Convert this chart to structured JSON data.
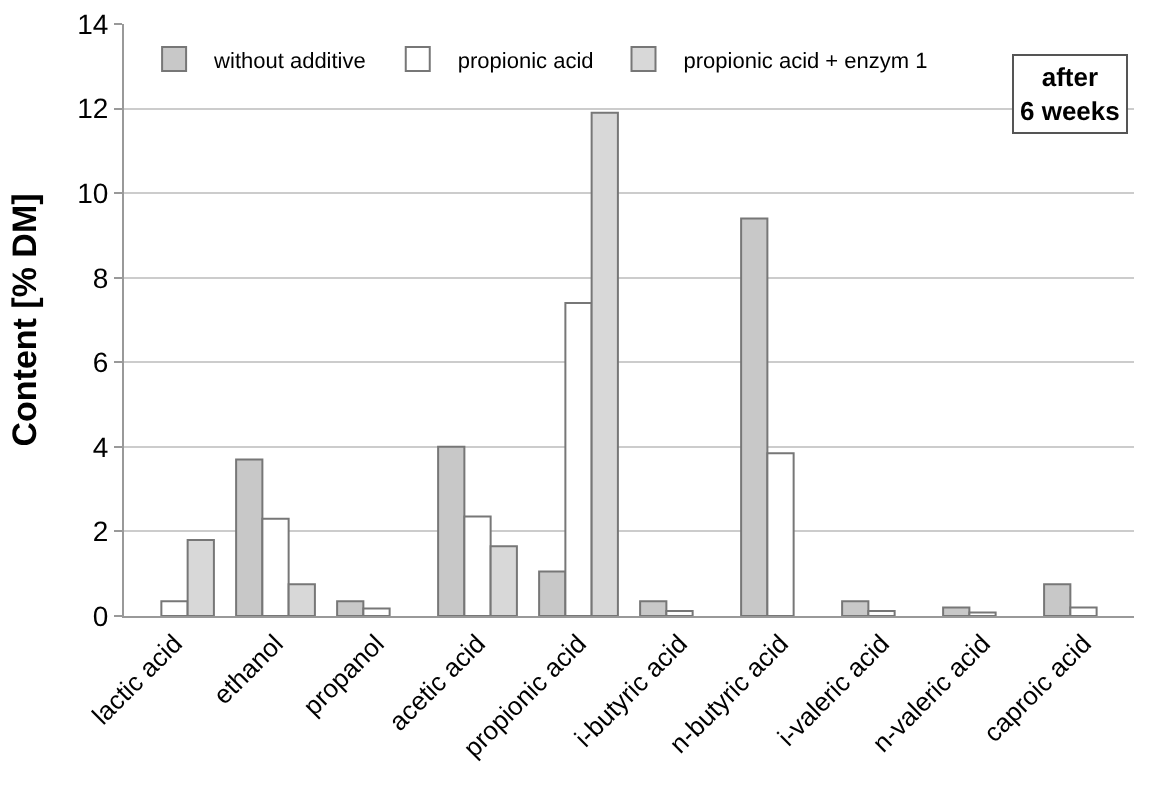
{
  "chart_data": {
    "type": "bar",
    "ylabel": "Content [% DM]",
    "categories": [
      "lactic acid",
      "ethanol",
      "propanol",
      "acetic acid",
      "propionic acid",
      "i-butyric acid",
      "n-butyric acid",
      "i-valeric acid",
      "n-valeric acid",
      "caproic acid"
    ],
    "series": [
      {
        "name": "without additive",
        "color": "#c8c8c8",
        "values": [
          null,
          3.7,
          0.35,
          4.0,
          1.05,
          0.35,
          9.4,
          0.35,
          0.2,
          0.75
        ]
      },
      {
        "name": "propionic acid",
        "color": "#ffffff",
        "values": [
          0.35,
          2.3,
          0.18,
          2.35,
          7.4,
          0.12,
          3.85,
          0.12,
          0.08,
          0.2
        ]
      },
      {
        "name": "propionic acid + enzym 1",
        "color": "#d8d8d8",
        "values": [
          1.8,
          0.75,
          null,
          1.65,
          11.9,
          null,
          null,
          null,
          null,
          null
        ]
      }
    ],
    "ylim": [
      0,
      14
    ],
    "yticks": [
      0,
      2,
      4,
      6,
      8,
      10,
      12,
      14
    ],
    "grid": "y",
    "legend": "top left",
    "annotations": [
      "after\n6 weeks"
    ]
  }
}
